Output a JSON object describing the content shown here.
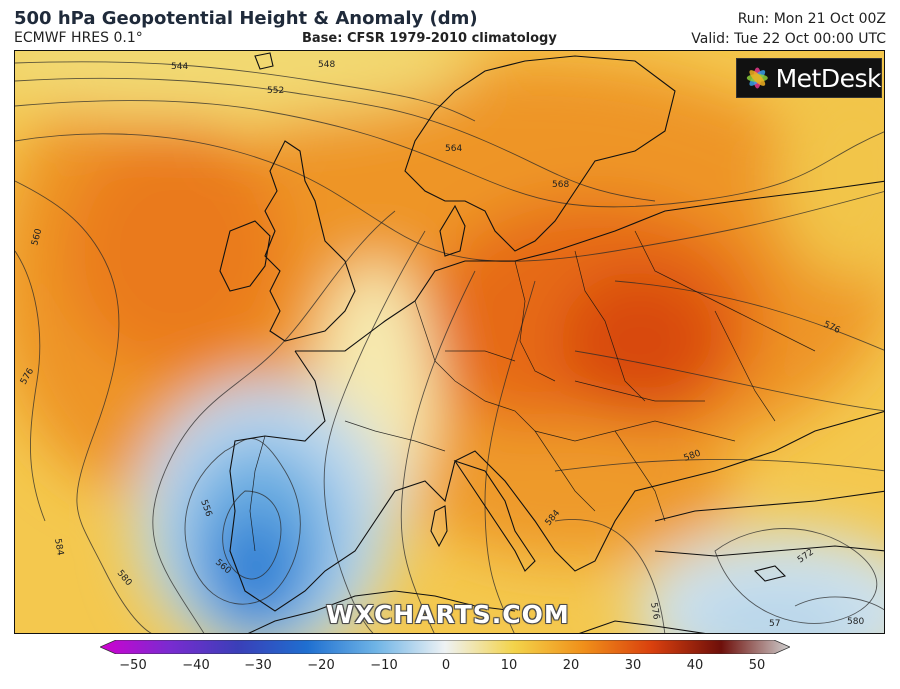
{
  "header": {
    "title": "500 hPa Geopotential Height & Anomaly (dm)",
    "model": "ECMWF HRES 0.1°",
    "base": "Base: CFSR 1979-2010 climatology",
    "run": "Run: Mon 21 Oct 00Z",
    "valid": "Valid: Tue 22 Oct 00:00 UTC"
  },
  "logo": {
    "text": "MetDesk"
  },
  "watermark": {
    "text": "WXCHARTS.COM"
  },
  "contour_labels": [
    {
      "id": "544",
      "text": "544"
    },
    {
      "id": "548",
      "text": "548"
    },
    {
      "id": "552",
      "text": "552"
    },
    {
      "id": "564",
      "text": "564"
    },
    {
      "id": "568",
      "text": "568"
    },
    {
      "id": "560-west",
      "text": "560"
    },
    {
      "id": "576-west",
      "text": "576"
    },
    {
      "id": "576-east",
      "text": "576"
    },
    {
      "id": "580-east",
      "text": "580"
    },
    {
      "id": "584-west",
      "text": "584"
    },
    {
      "id": "584-central",
      "text": "584"
    },
    {
      "id": "556-iberia",
      "text": "556"
    },
    {
      "id": "560-iberia",
      "text": "560"
    },
    {
      "id": "580-southwest",
      "text": "580"
    },
    {
      "id": "576-southeast",
      "text": "576"
    },
    {
      "id": "572-southeast",
      "text": "572"
    },
    {
      "id": "57-southeast",
      "text": "57"
    },
    {
      "id": "580-southeast",
      "text": "580"
    }
  ],
  "colorbar": {
    "labels": [
      "−50",
      "−40",
      "−30",
      "−20",
      "−10",
      "0",
      "10",
      "20",
      "30",
      "40",
      "50"
    ],
    "colors": [
      "#d000d0",
      "#7a2bd0",
      "#3a3fb8",
      "#1f6fd0",
      "#6fb4e6",
      "#e8f0f4",
      "#f3d34a",
      "#f0901a",
      "#d9400e",
      "#6e0f0a",
      "#cfcfcf"
    ]
  }
}
